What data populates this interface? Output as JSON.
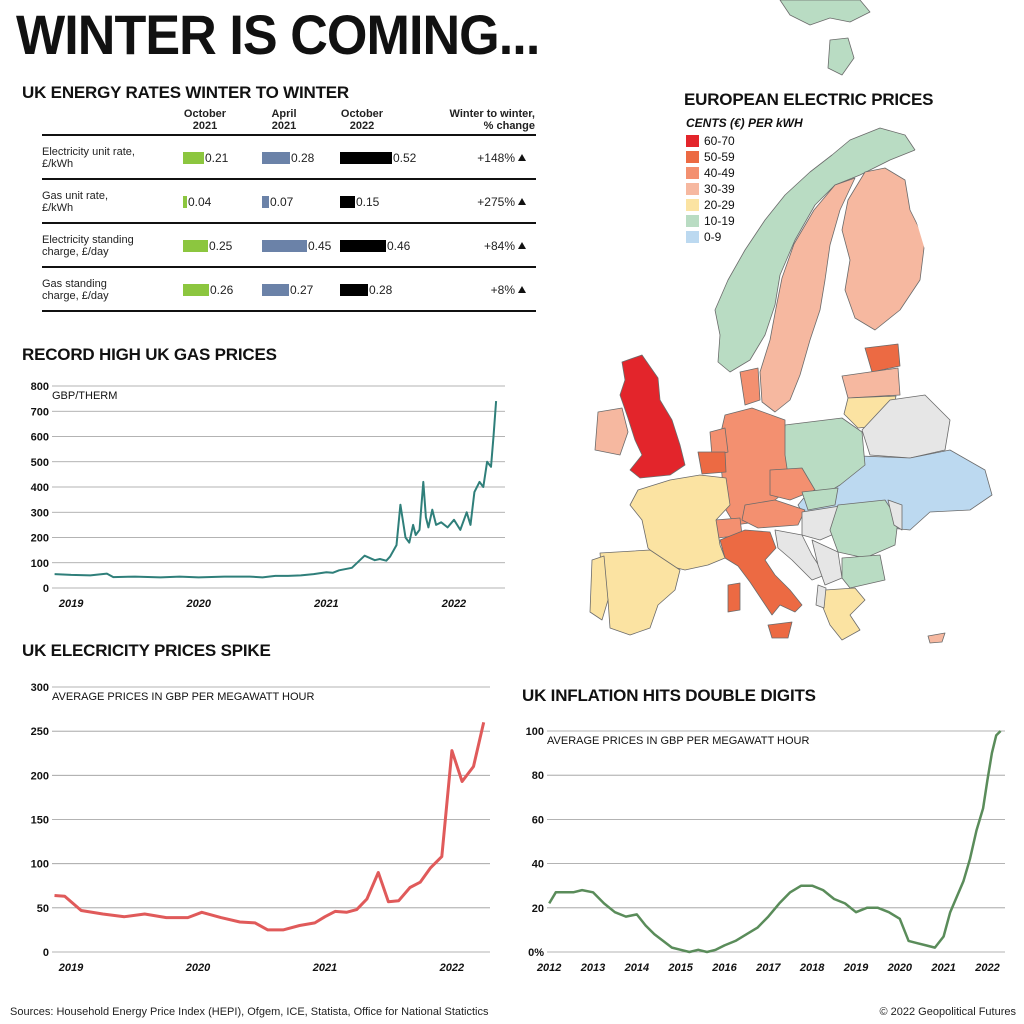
{
  "main_title": "WINTER IS COMING...",
  "footer": {
    "sources": "Sources: Household Energy Price Index (HEPI), Ofgem, ICE, Statista, Office for National Statictics",
    "copyright": "© 2022 Geopolitical Futures"
  },
  "colors": {
    "oct2021": "#8cc63f",
    "apr2021": "#6b82a8",
    "oct2022": "#000000",
    "gas_line": "#2f7f7a",
    "elec_line": "#e05a5a",
    "infl_line": "#5a8c5a",
    "grid": "#9a9a9a"
  },
  "energy_table": {
    "title": "UK ENERGY RATES WINTER TO WINTER",
    "col_oct2021": "October\n2021",
    "col_apr2021": "April\n2021",
    "col_oct2022": "October\n2022",
    "col_change": "Winter to winter,\n% change",
    "rows": [
      {
        "label": "Electricity unit rate,\n£/kWh",
        "v1": 0.21,
        "v2": 0.28,
        "v3": 0.52,
        "t1": "0.21",
        "t2": "0.28",
        "t3": "0.52",
        "change": "+148%"
      },
      {
        "label": "Gas unit rate,\n£/kWh",
        "v1": 0.04,
        "v2": 0.07,
        "v3": 0.15,
        "t1": "0.04",
        "t2": "0.07",
        "t3": "0.15",
        "change": "+275%"
      },
      {
        "label": "Electricity standing\ncharge, £/day",
        "v1": 0.25,
        "v2": 0.45,
        "v3": 0.46,
        "t1": "0.25",
        "t2": "0.45",
        "t3": "0.46",
        "change": "+84%"
      },
      {
        "label": "Gas standing\ncharge, £/day",
        "v1": 0.26,
        "v2": 0.27,
        "v3": 0.28,
        "t1": "0.26",
        "t2": "0.27",
        "t3": "0.28",
        "change": "+8%"
      }
    ]
  },
  "map": {
    "title": "EUROPEAN ELECTRIC PRICES",
    "legend_title": "CENTS (€) PER kWH",
    "legend": [
      {
        "label": "60-70",
        "color": "#e3252b"
      },
      {
        "label": "50-59",
        "color": "#ec6a43"
      },
      {
        "label": "40-49",
        "color": "#f39070"
      },
      {
        "label": "30-39",
        "color": "#f6b8a0"
      },
      {
        "label": "20-29",
        "color": "#fbe3a2"
      },
      {
        "label": "10-19",
        "color": "#b9dcc3"
      },
      {
        "label": "0-9",
        "color": "#bcd9f0"
      }
    ],
    "no_data_color": "#e6e6e6"
  },
  "chart_data": [
    {
      "type": "line",
      "title": "RECORD HIGH UK GAS PRICES",
      "ylabel": "GBP/THERM",
      "ylim": [
        0,
        800
      ],
      "yticks": [
        0,
        100,
        200,
        300,
        400,
        500,
        600,
        700,
        800
      ],
      "xlim": [
        2018.85,
        2022.4
      ],
      "xticks": [
        {
          "v": 2019.0,
          "label": "2019"
        },
        {
          "v": 2020.0,
          "label": "2020"
        },
        {
          "v": 2021.0,
          "label": "2021"
        },
        {
          "v": 2022.0,
          "label": "2022"
        }
      ],
      "grid": true,
      "x": [
        2018.87,
        2019.0,
        2019.15,
        2019.28,
        2019.33,
        2019.5,
        2019.7,
        2019.85,
        2020.0,
        2020.2,
        2020.4,
        2020.5,
        2020.6,
        2020.7,
        2020.8,
        2020.9,
        2021.0,
        2021.05,
        2021.1,
        2021.2,
        2021.3,
        2021.38,
        2021.42,
        2021.47,
        2021.5,
        2021.55,
        2021.58,
        2021.62,
        2021.65,
        2021.68,
        2021.7,
        2021.73,
        2021.76,
        2021.78,
        2021.8,
        2021.83,
        2021.86,
        2021.9,
        2021.95,
        2022.0,
        2022.05,
        2022.1,
        2022.13,
        2022.16,
        2022.2,
        2022.23,
        2022.26,
        2022.29,
        2022.31,
        2022.33
      ],
      "y": [
        55,
        52,
        50,
        57,
        43,
        45,
        42,
        45,
        42,
        45,
        45,
        42,
        48,
        48,
        50,
        55,
        62,
        60,
        70,
        80,
        128,
        110,
        115,
        108,
        125,
        170,
        330,
        200,
        180,
        250,
        210,
        230,
        420,
        280,
        240,
        310,
        250,
        260,
        240,
        270,
        230,
        300,
        250,
        380,
        420,
        400,
        500,
        480,
        600,
        740
      ]
    },
    {
      "type": "line",
      "title": "UK ELECRICITY PRICES SPIKE",
      "ylabel": "AVERAGE PRICES IN GBP PER MEGAWATT HOUR",
      "ylim": [
        0,
        300
      ],
      "yticks": [
        0,
        50,
        100,
        150,
        200,
        250,
        300
      ],
      "xlim": [
        2018.85,
        2022.3
      ],
      "xticks": [
        {
          "v": 2019.0,
          "label": "2019"
        },
        {
          "v": 2020.0,
          "label": "2020"
        },
        {
          "v": 2021.0,
          "label": "2021"
        },
        {
          "v": 2022.0,
          "label": "2022"
        }
      ],
      "grid": true,
      "x": [
        2018.87,
        2018.95,
        2019.08,
        2019.25,
        2019.42,
        2019.58,
        2019.75,
        2019.92,
        2020.03,
        2020.18,
        2020.33,
        2020.45,
        2020.55,
        2020.67,
        2020.8,
        2020.92,
        2021.0,
        2021.08,
        2021.17,
        2021.25,
        2021.33,
        2021.42,
        2021.5,
        2021.58,
        2021.67,
        2021.75,
        2021.83,
        2021.92,
        2022.0,
        2022.08,
        2022.17,
        2022.25
      ],
      "y": [
        64,
        63,
        47,
        43,
        40,
        43,
        39,
        39,
        45,
        39,
        34,
        33,
        25,
        25,
        30,
        33,
        40,
        46,
        45,
        48,
        60,
        90,
        57,
        58,
        73,
        79,
        95,
        108,
        228,
        193,
        210,
        260
      ]
    },
    {
      "type": "line",
      "title": "UK INFLATION HITS DOUBLE DIGITS",
      "ylabel": "AVERAGE PRICES IN GBP PER MEGAWATT HOUR",
      "ylim": [
        0,
        100
      ],
      "yticks": [
        0,
        20,
        40,
        60,
        80,
        100
      ],
      "ytick_labels": [
        "0%",
        "20",
        "40",
        "60",
        "80",
        "100"
      ],
      "xlim": [
        2011.95,
        2022.4
      ],
      "xticks": [
        {
          "v": 2012,
          "label": "2012"
        },
        {
          "v": 2013,
          "label": "2013"
        },
        {
          "v": 2014,
          "label": "2014"
        },
        {
          "v": 2015,
          "label": "2015"
        },
        {
          "v": 2016,
          "label": "2016"
        },
        {
          "v": 2017,
          "label": "2017"
        },
        {
          "v": 2018,
          "label": "2018"
        },
        {
          "v": 2019,
          "label": "2019"
        },
        {
          "v": 2020,
          "label": "2020"
        },
        {
          "v": 2021,
          "label": "2021"
        },
        {
          "v": 2022,
          "label": "2022"
        }
      ],
      "grid": true,
      "x": [
        2012.0,
        2012.15,
        2012.35,
        2012.55,
        2012.75,
        2013.0,
        2013.25,
        2013.5,
        2013.75,
        2014.0,
        2014.2,
        2014.4,
        2014.6,
        2014.8,
        2015.0,
        2015.2,
        2015.4,
        2015.6,
        2015.8,
        2016.0,
        2016.25,
        2016.5,
        2016.75,
        2017.0,
        2017.25,
        2017.5,
        2017.75,
        2018.0,
        2018.25,
        2018.5,
        2018.75,
        2019.0,
        2019.25,
        2019.5,
        2019.75,
        2020.0,
        2020.2,
        2020.4,
        2020.6,
        2020.8,
        2021.0,
        2021.15,
        2021.3,
        2021.45,
        2021.6,
        2021.75,
        2021.9,
        2022.0,
        2022.1,
        2022.2,
        2022.3
      ],
      "y": [
        22,
        27,
        27,
        27,
        28,
        27,
        22,
        18,
        16,
        17,
        12,
        8,
        5,
        2,
        1,
        0,
        1,
        0,
        1,
        3,
        5,
        8,
        11,
        16,
        22,
        27,
        30,
        30,
        28,
        24,
        22,
        18,
        20,
        20,
        18,
        15,
        5,
        4,
        3,
        2,
        7,
        18,
        25,
        32,
        42,
        55,
        65,
        78,
        90,
        98,
        100
      ]
    }
  ]
}
